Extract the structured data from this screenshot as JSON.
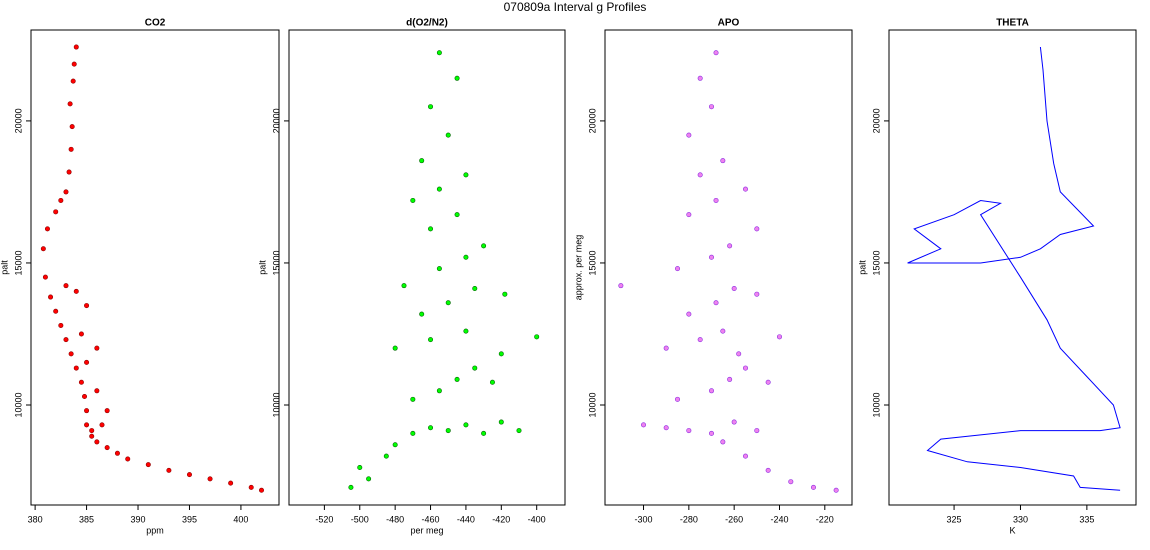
{
  "title": "070809a   Interval g Profiles",
  "chart_data": [
    {
      "type": "scatter",
      "title": "CO2",
      "x_label": "ppm",
      "y_label": "palt",
      "color": "#ff0000",
      "edge": "#8b0000",
      "xlim": [
        379.6,
        403.7
      ],
      "xticks": [
        380,
        385,
        390,
        395,
        400
      ],
      "ylim": [
        6480,
        23200
      ],
      "yticks": [
        10000,
        15000,
        20000
      ],
      "x": [
        402,
        401,
        399,
        397,
        395,
        393,
        391,
        389,
        388,
        387,
        386,
        385.5,
        385,
        385,
        384.8,
        384.5,
        384,
        383.5,
        383,
        382.5,
        382,
        381.5,
        381,
        380.8,
        381.2,
        382,
        382.5,
        383,
        383.3,
        383.5,
        383.6,
        383.4,
        383.7,
        383.8,
        384,
        385.5,
        386.5,
        387,
        386,
        385,
        384.5,
        386,
        385,
        383,
        384
      ],
      "values": [
        7000,
        7100,
        7250,
        7400,
        7550,
        7700,
        7900,
        8100,
        8300,
        8500,
        8700,
        8900,
        9300,
        9800,
        10300,
        10800,
        11300,
        11800,
        12300,
        12800,
        13300,
        13800,
        14500,
        15500,
        16200,
        16800,
        17200,
        17500,
        18200,
        19000,
        19800,
        20600,
        21400,
        22000,
        22600,
        9100,
        9300,
        9800,
        10500,
        11500,
        12500,
        12000,
        13500,
        14200,
        14000
      ]
    },
    {
      "type": "scatter",
      "title": "d(O2/N2)",
      "x_label": "per meg",
      "y_label": "palt",
      "color": "#00ff00",
      "edge": "#006400",
      "xlim": [
        -540,
        -384
      ],
      "xticks": [
        -520,
        -500,
        -480,
        -460,
        -440,
        -420,
        -400
      ],
      "ylim": [
        6480,
        23200
      ],
      "yticks": [
        10000,
        15000,
        20000
      ],
      "x": [
        -505,
        -495,
        -500,
        -485,
        -480,
        -470,
        -460,
        -450,
        -440,
        -430,
        -420,
        -410,
        -470,
        -455,
        -445,
        -435,
        -425,
        -480,
        -460,
        -440,
        -420,
        -400,
        -465,
        -450,
        -435,
        -418,
        -475,
        -455,
        -440,
        -430,
        -460,
        -445,
        -470,
        -455,
        -440,
        -465,
        -450,
        -460,
        -445,
        -455
      ],
      "values": [
        7100,
        7400,
        7800,
        8200,
        8600,
        9000,
        9200,
        9100,
        9300,
        9000,
        9400,
        9100,
        10200,
        10500,
        10900,
        11300,
        10800,
        12000,
        12300,
        12600,
        11800,
        12400,
        13200,
        13600,
        14100,
        13900,
        14200,
        14800,
        15200,
        15600,
        16200,
        16700,
        17200,
        17600,
        18100,
        18600,
        19500,
        20500,
        21500,
        22400
      ]
    },
    {
      "type": "scatter",
      "title": "APO",
      "y_label": "approx. per meg",
      "color": "#ee82ee",
      "edge": "#8a2be2",
      "xlim": [
        -317,
        -208
      ],
      "xticks": [
        -300,
        -280,
        -260,
        -240,
        -220
      ],
      "ylim": [
        6480,
        23200
      ],
      "yticks": [
        10000,
        15000,
        20000
      ],
      "x": [
        -215,
        -225,
        -235,
        -245,
        -255,
        -265,
        -280,
        -300,
        -290,
        -270,
        -260,
        -250,
        -285,
        -270,
        -262,
        -255,
        -245,
        -290,
        -275,
        -265,
        -258,
        -240,
        -280,
        -268,
        -260,
        -250,
        -310,
        -285,
        -270,
        -262,
        -250,
        -280,
        -268,
        -255,
        -275,
        -265,
        -280,
        -270,
        -275,
        -268
      ],
      "values": [
        7000,
        7100,
        7300,
        7700,
        8200,
        8700,
        9100,
        9300,
        9200,
        9000,
        9400,
        9100,
        10200,
        10500,
        10900,
        11300,
        10800,
        12000,
        12300,
        12600,
        11800,
        12400,
        13200,
        13600,
        14100,
        13900,
        14200,
        14800,
        15200,
        15600,
        16200,
        16700,
        17200,
        17600,
        18100,
        18600,
        19500,
        20500,
        21500,
        22400
      ]
    },
    {
      "type": "line",
      "title": "THETA",
      "x_label": "K",
      "y_label": "palt",
      "color": "#0000ff",
      "xlim": [
        320.1,
        338.7
      ],
      "xticks": [
        325,
        330,
        335
      ],
      "ylim": [
        6480,
        23200
      ],
      "yticks": [
        10000,
        15000,
        20000
      ],
      "x": [
        331.5,
        331.7,
        332,
        332.5,
        333,
        335.5,
        333,
        331.5,
        330,
        327,
        321.5,
        324,
        322,
        325,
        327,
        328.5,
        327,
        330,
        332,
        333,
        335,
        337,
        337.5,
        336,
        330,
        324,
        323,
        326,
        330,
        334,
        334.5,
        337.5
      ],
      "values": [
        22600,
        21800,
        20000,
        18500,
        17500,
        16300,
        16000,
        15500,
        15200,
        15000,
        15000,
        15500,
        16200,
        16700,
        17200,
        17100,
        16700,
        14500,
        13000,
        12000,
        11000,
        10000,
        9200,
        9100,
        9100,
        8800,
        8400,
        8000,
        7800,
        7500,
        7100,
        7000
      ]
    }
  ]
}
